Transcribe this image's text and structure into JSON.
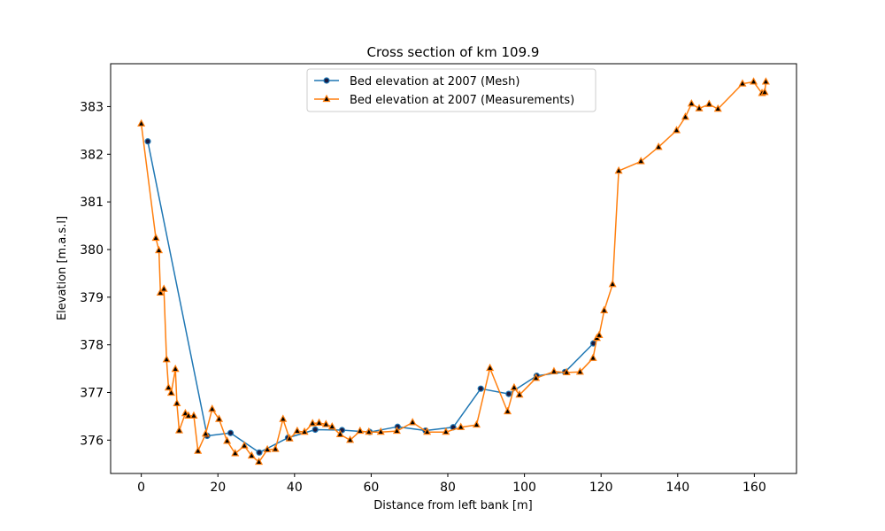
{
  "chart_data": {
    "type": "line",
    "title": "Cross section of km 109.9",
    "xlabel": "Distance from left bank [m]",
    "ylabel": "Elevation [m.a.s.l]",
    "xlim": [
      -8,
      171
    ],
    "ylim": [
      375.3,
      383.9
    ],
    "xticks": [
      0,
      20,
      40,
      60,
      80,
      100,
      120,
      140,
      160
    ],
    "yticks": [
      376,
      377,
      378,
      379,
      380,
      381,
      382,
      383
    ],
    "grid": false,
    "legend_position": "top-center",
    "series": [
      {
        "name": "Bed elevation at 2007 (Mesh)",
        "color": "#1f77b4",
        "marker": "circle",
        "x": [
          1.7,
          17.2,
          23.3,
          30.8,
          38.3,
          45.4,
          52.4,
          59.6,
          66.9,
          74.2,
          81.4,
          88.6,
          95.9,
          103.2,
          110.6,
          118.0
        ],
        "y": [
          382.27,
          376.09,
          376.15,
          375.74,
          376.05,
          376.22,
          376.21,
          376.17,
          376.28,
          376.2,
          376.27,
          377.08,
          376.97,
          377.35,
          377.43,
          378.03
        ]
      },
      {
        "name": "Bed elevation at 2007 (Measurements)",
        "color": "#ff7f0e",
        "marker": "triangle",
        "x": [
          0.0,
          3.8,
          4.6,
          5.0,
          5.9,
          6.6,
          7.1,
          7.8,
          8.9,
          9.3,
          9.9,
          11.5,
          12.3,
          13.7,
          14.8,
          16.8,
          18.5,
          20.3,
          22.4,
          24.5,
          26.9,
          28.8,
          30.7,
          32.9,
          35.0,
          37.0,
          38.7,
          40.7,
          42.6,
          44.7,
          46.4,
          48.2,
          49.8,
          51.9,
          54.5,
          57.1,
          59.4,
          62.5,
          66.7,
          70.8,
          74.6,
          79.5,
          83.4,
          87.5,
          91.0,
          95.6,
          97.3,
          98.7,
          103.0,
          107.7,
          111.0,
          114.5,
          117.9,
          118.9,
          119.5,
          120.8,
          123.0,
          124.6,
          130.4,
          135.0,
          139.7,
          142.0,
          143.6,
          145.6,
          148.2,
          150.5,
          156.9,
          159.8,
          162.0,
          162.7,
          163.0
        ],
        "y": [
          382.64,
          380.24,
          379.98,
          379.09,
          379.17,
          377.69,
          377.1,
          376.99,
          377.49,
          376.77,
          376.2,
          376.56,
          376.51,
          376.51,
          375.77,
          376.13,
          376.65,
          376.44,
          375.98,
          375.72,
          375.88,
          375.67,
          375.54,
          375.8,
          375.81,
          376.44,
          376.03,
          376.19,
          376.17,
          376.35,
          376.36,
          376.33,
          376.28,
          376.12,
          376.0,
          376.19,
          376.17,
          376.17,
          376.19,
          376.37,
          376.17,
          376.17,
          376.27,
          376.32,
          377.51,
          376.6,
          377.1,
          376.95,
          377.3,
          377.44,
          377.42,
          377.43,
          377.72,
          378.14,
          378.2,
          378.72,
          379.27,
          381.65,
          381.85,
          382.15,
          382.5,
          382.78,
          383.06,
          382.96,
          383.05,
          382.95,
          383.48,
          383.52,
          383.28,
          383.3,
          383.52
        ]
      }
    ]
  }
}
